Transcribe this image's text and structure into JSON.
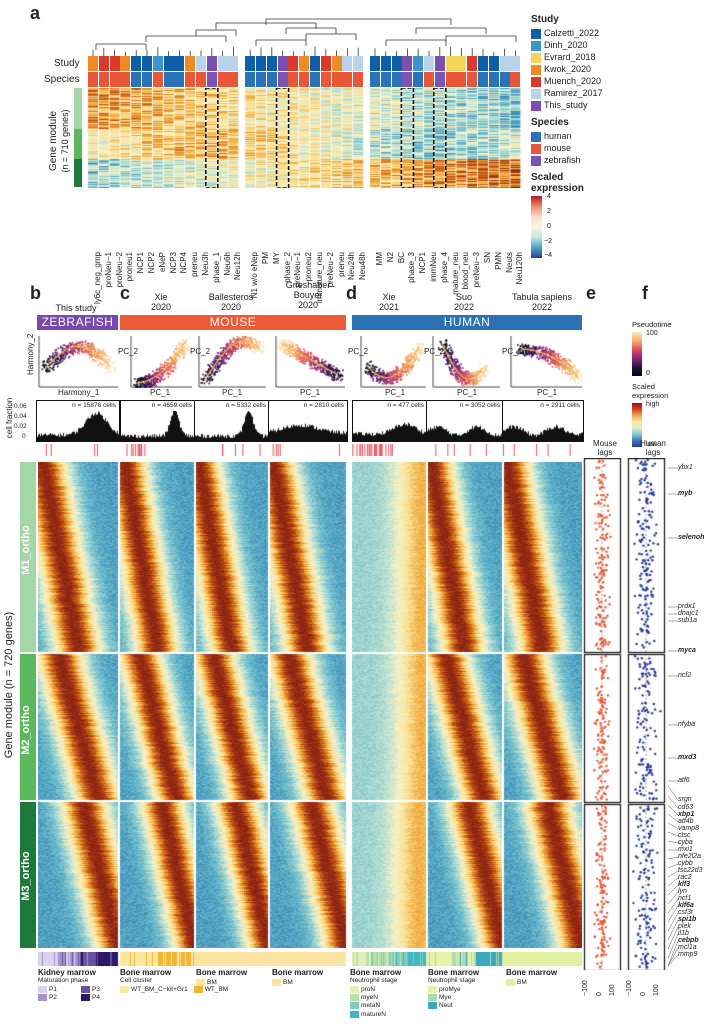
{
  "panels": {
    "a": "a",
    "b": "b",
    "c": "c",
    "d": "d",
    "e": "e",
    "f": "f"
  },
  "panel_a": {
    "row_labels": {
      "study": "Study",
      "species": "Species"
    },
    "y_label": "Gene module",
    "y_sub": "(n = 710 genes)",
    "columns": [
      "ly6c_neg_gmp",
      "proNeu−1",
      "proNeu−2",
      "proneu1",
      "NCP1",
      "NCP2",
      "eNeP",
      "NCP3",
      "NCP4",
      "preneu",
      "Neu3h",
      "phase_1",
      "Neu6h",
      "Neu12h",
      "N1 w/o eNep",
      "PM",
      "MY",
      "phase_2",
      "preNeu−1",
      "proneu2",
      "immature_neu",
      "preNeu−2",
      "preneu",
      "Neu24h",
      "Neu48h",
      "MM",
      "N2",
      "BC",
      "phase_3",
      "NCP1",
      "immNeu",
      "phase_4",
      "mature_neu",
      "blood_neu",
      "preNeu−3",
      "SN",
      "PMN",
      "Neuts",
      "Neu120h"
    ]
  },
  "legend_a": {
    "study_title": "Study",
    "studies": [
      {
        "name": "Calzetti_2022",
        "color": "#0f5ea8"
      },
      {
        "name": "Dinh_2020",
        "color": "#3e93cc"
      },
      {
        "name": "Evrard_2018",
        "color": "#f6d55c"
      },
      {
        "name": "Kwok_2020",
        "color": "#f08a24"
      },
      {
        "name": "Muench_2020",
        "color": "#d93a2b"
      },
      {
        "name": "Ramirez_2017",
        "color": "#b9d3ea"
      },
      {
        "name": "This_study",
        "color": "#7b4fae"
      }
    ],
    "species_title": "Species",
    "species": [
      {
        "name": "human",
        "color": "#2b73b8"
      },
      {
        "name": "mouse",
        "color": "#e8573a"
      },
      {
        "name": "zebrafish",
        "color": "#7a56b4"
      }
    ],
    "scale_title_1": "Scaled",
    "scale_title_2": "expression",
    "scale_ticks": [
      "4",
      "2",
      "0",
      "−2",
      "−4"
    ]
  },
  "headers": {
    "this_study": "This study",
    "xie2020": [
      "Xie",
      "2020"
    ],
    "ballesteros": [
      "Ballesteros",
      "2020"
    ],
    "grieshaber": [
      "Grieshaber",
      "Bouyer",
      "2020"
    ],
    "xie2021": [
      "Xie",
      "2021"
    ],
    "suo": [
      "Suo",
      "2022"
    ],
    "tabula": [
      "Tabula sapiens",
      "2022"
    ]
  },
  "banners": {
    "zebrafish": {
      "text": "ZEBRAFISH",
      "color": "#7a49ad"
    },
    "mouse": {
      "text": "MOUSE",
      "color": "#ec5a37"
    },
    "human": {
      "text": "HUMAN",
      "color": "#2a72b5"
    }
  },
  "pca": {
    "zf_x": "Harmony_1",
    "zf_y": "Harmony_2",
    "pc1": "PC_1",
    "pc2": "PC_2"
  },
  "histograms": {
    "y_label": "cell fraction",
    "y_ticks": [
      "0.06",
      "0.04",
      "0.02",
      "0"
    ],
    "counts": [
      "n = 15876 cells",
      "n = 4659 cells",
      "n = 5332 cells",
      "n = 2810 cells",
      "n = 477 cells",
      "n = 3052 cells",
      "n = 2911 cells"
    ]
  },
  "pseudotime_legend": {
    "title": "Pseudotime",
    "max": "100",
    "min": "0"
  },
  "scaled_legend": {
    "title_1": "Scaled",
    "title_2": "expression",
    "high": "high",
    "low": "low"
  },
  "modules": {
    "y_label": "Gene module (n = 720 genes)",
    "m1": "M1_ortho",
    "m2": "M2_ortho",
    "m3": "M3_ortho",
    "m1_color": "#a5d6a7",
    "m2_color": "#5cb85c",
    "m3_color": "#1e7a3c"
  },
  "lags": {
    "mouse": [
      "Mouse",
      "lags"
    ],
    "human": [
      "Human",
      "lags"
    ],
    "ticks": [
      "−100",
      "0",
      "100"
    ]
  },
  "genes": [
    {
      "t": "ybx1",
      "b": false
    },
    {
      "t": "myb",
      "b": true
    },
    {
      "t": "selenoh",
      "b": true
    },
    {
      "t": "prdx1",
      "b": false
    },
    {
      "t": "dnajc1",
      "b": false
    },
    {
      "t": "sub1a",
      "b": false
    },
    {
      "t": "myca",
      "b": true
    },
    {
      "t": "ncf2",
      "b": false
    },
    {
      "t": "nfyba",
      "b": false
    },
    {
      "t": "mxd3",
      "b": true
    },
    {
      "t": "atf6",
      "b": false
    },
    {
      "t": "srgn",
      "b": false
    },
    {
      "t": "cd63",
      "b": false
    },
    {
      "t": "xbp1",
      "b": true
    },
    {
      "t": "atf4b",
      "b": false
    },
    {
      "t": "vamp8",
      "b": false
    },
    {
      "t": "ctsc",
      "b": false
    },
    {
      "t": "cyba",
      "b": false
    },
    {
      "t": "mxi1",
      "b": false
    },
    {
      "t": "nfe2l2a",
      "b": false
    },
    {
      "t": "cybb",
      "b": false
    },
    {
      "t": "tsc22d3",
      "b": false
    },
    {
      "t": "rac2",
      "b": false
    },
    {
      "t": "klf3",
      "b": true
    },
    {
      "t": "lyn",
      "b": false
    },
    {
      "t": "ncf1",
      "b": false
    },
    {
      "t": "klf6a",
      "b": true
    },
    {
      "t": "csf3r",
      "b": false
    },
    {
      "t": "spi1b",
      "b": true
    },
    {
      "t": "plek",
      "b": false
    },
    {
      "t": "il1b",
      "b": false
    },
    {
      "t": "cebpb",
      "b": true
    },
    {
      "t": "mcl1a",
      "b": false
    },
    {
      "t": "mmp9",
      "b": false
    }
  ],
  "bottom_legends": {
    "kidney": {
      "title": "Kidney marrow",
      "sub": "Maturation phase",
      "items": [
        {
          "n": "P1",
          "c": "#d9d2ec"
        },
        {
          "n": "P3",
          "c": "#6a4fa3"
        },
        {
          "n": "P2",
          "c": "#a794cf"
        },
        {
          "n": "P4",
          "c": "#2e1766"
        }
      ]
    },
    "bm1": {
      "title": "Bone marrow",
      "sub": "Cell cluster",
      "items": [
        {
          "n": "WT_BM_C−kit+Gr1",
          "c": "#fbe8a0"
        },
        {
          "n": "WT_BM",
          "c": "#f3b431"
        }
      ]
    },
    "bm2": {
      "title": "Bone marrow",
      "items": [
        {
          "n": "BM",
          "c": "#fbe3a1"
        }
      ]
    },
    "bm3": {
      "title": "Bone marrow",
      "items": [
        {
          "n": "BM",
          "c": "#fbe3a1"
        }
      ]
    },
    "bm4": {
      "title": "Bone marrow",
      "sub": "Neutrophil stage",
      "items": [
        {
          "n": "proN",
          "c": "#e5f0b8"
        },
        {
          "n": "myeN",
          "c": "#b8dfa8"
        },
        {
          "n": "metaN",
          "c": "#7fcdbb"
        },
        {
          "n": "matureN",
          "c": "#41b6c4"
        }
      ]
    },
    "bm5": {
      "title": "Bone marrow",
      "sub": "Neutrophil stage",
      "items": [
        {
          "n": "proMye",
          "c": "#e8f1a8"
        },
        {
          "n": "Mye",
          "c": "#a9dcb1"
        },
        {
          "n": "Neut",
          "c": "#3aa7bf"
        }
      ]
    },
    "bm6": {
      "title": "Bone marrow",
      "items": [
        {
          "n": "BM",
          "c": "#e3f0a0"
        }
      ]
    }
  }
}
